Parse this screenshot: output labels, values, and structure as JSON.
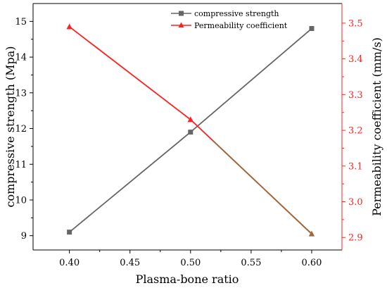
{
  "chart_data": {
    "type": "line",
    "xlabel": "Plasma-bone ratio",
    "ylabel_left": "compressive strength (Mpa)",
    "ylabel_right": "Permeability coefficient (mm/s)",
    "xlim": [
      0.37,
      0.625
    ],
    "ylim_left": [
      8.6,
      15.5
    ],
    "ylim_right": [
      2.865,
      3.555
    ],
    "x_ticks": [
      "0.40",
      "0.45",
      "0.50",
      "0.55",
      "0.60"
    ],
    "y_left_ticks": [
      "9",
      "10",
      "11",
      "12",
      "13",
      "14",
      "15"
    ],
    "y_right_ticks": [
      "2.9",
      "3.0",
      "3.1",
      "3.2",
      "3.3",
      "3.4",
      "3.5"
    ],
    "grid": false,
    "legend_position": "top-center",
    "colors": {
      "left_series": "#666666",
      "right_series": "#ff2020",
      "overlap": "#9a6a3a"
    },
    "series": [
      {
        "name": "compressive strength",
        "axis": "left",
        "marker": "square",
        "x": [
          0.4,
          0.5,
          0.6
        ],
        "values": [
          9.1,
          11.9,
          14.8
        ]
      },
      {
        "name": "Permeability coefficient",
        "axis": "right",
        "marker": "triangle",
        "x": [
          0.4,
          0.5,
          0.6
        ],
        "values": [
          3.49,
          3.23,
          2.91
        ]
      }
    ]
  }
}
